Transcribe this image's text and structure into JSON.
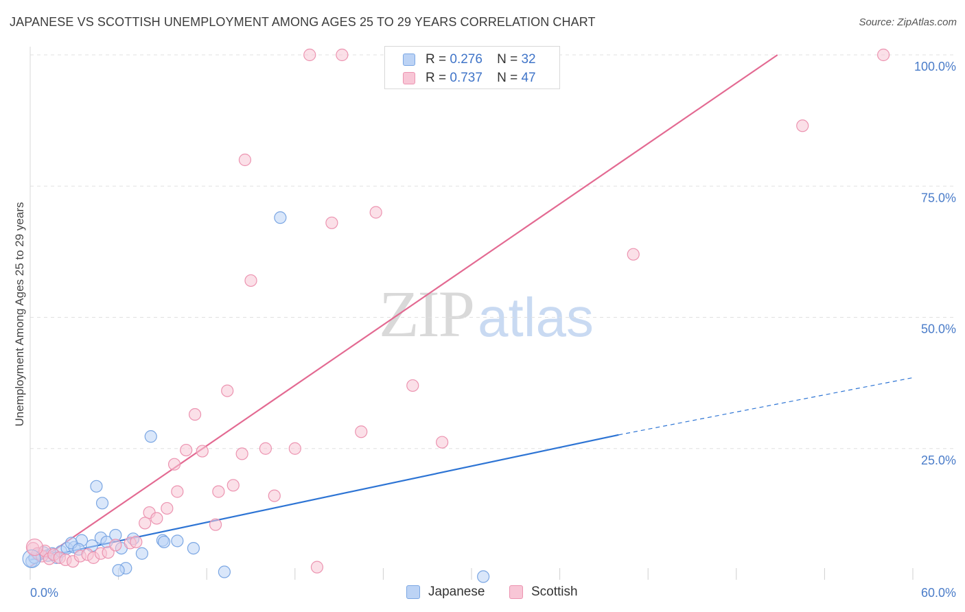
{
  "header": {
    "title": "JAPANESE VS SCOTTISH UNEMPLOYMENT AMONG AGES 25 TO 29 YEARS CORRELATION CHART",
    "source": "Source: ZipAtlas.com"
  },
  "watermark": {
    "part1": "ZIP",
    "part2": "atlas"
  },
  "legend": {
    "rows": [
      {
        "r_label": "R =",
        "r_value": "0.276",
        "n_label": "N =",
        "n_value": "32"
      },
      {
        "r_label": "R =",
        "r_value": "0.737",
        "n_label": "N =",
        "n_value": "47"
      }
    ]
  },
  "bottom_legend": {
    "japanese": "Japanese",
    "scottish": "Scottish"
  },
  "colors": {
    "japanese_fill": "#bcd3f5",
    "japanese_stroke": "#7aa6e3",
    "japanese_line": "#2d74d4",
    "scottish_fill": "#f8c6d6",
    "scottish_stroke": "#ec93b0",
    "scottish_line": "#e36a92",
    "grid": "#e0e0e0",
    "axis_text": "#4a7cc9"
  },
  "chart_data": {
    "type": "scatter",
    "title": "JAPANESE VS SCOTTISH UNEMPLOYMENT AMONG AGES 25 TO 29 YEARS CORRELATION CHART",
    "xlabel": "",
    "ylabel": "Unemployment Among Ages 25 to 29 years",
    "xlim": [
      0,
      60
    ],
    "ylim": [
      0,
      100
    ],
    "x_tick_labels": [
      "0.0%",
      "60.0%"
    ],
    "y_ticks": [
      {
        "value": 25,
        "label": "25.0%"
      },
      {
        "value": 50,
        "label": "50.0%"
      },
      {
        "value": 75,
        "label": "75.0%"
      },
      {
        "value": 100,
        "label": "100.0%"
      }
    ],
    "grid": true,
    "series": [
      {
        "name": "Japanese",
        "r": 0.276,
        "n": 32,
        "points": [
          [
            0.1,
            3.5
          ],
          [
            0.3,
            4.2
          ],
          [
            0.6,
            4.8
          ],
          [
            0.9,
            5.2
          ],
          [
            1.2,
            4.6
          ],
          [
            1.5,
            5.0
          ],
          [
            1.8,
            4.2
          ],
          [
            2.1,
            5.4
          ],
          [
            2.5,
            6.0
          ],
          [
            3.0,
            6.2
          ],
          [
            3.5,
            7.5
          ],
          [
            4.2,
            6.5
          ],
          [
            4.8,
            8.0
          ],
          [
            5.2,
            7.2
          ],
          [
            2.8,
            7.0
          ],
          [
            3.3,
            5.8
          ],
          [
            4.5,
            17.8
          ],
          [
            4.9,
            14.6
          ],
          [
            5.8,
            8.5
          ],
          [
            6.2,
            6.0
          ],
          [
            7.0,
            7.8
          ],
          [
            7.6,
            5.0
          ],
          [
            8.2,
            27.3
          ],
          [
            9.0,
            7.5
          ],
          [
            9.1,
            7.2
          ],
          [
            10.0,
            7.4
          ],
          [
            11.1,
            6.0
          ],
          [
            13.2,
            1.5
          ],
          [
            17.0,
            69.0
          ],
          [
            6.5,
            2.2
          ],
          [
            6.0,
            1.8
          ],
          [
            30.8,
            0.6
          ]
        ],
        "trend": {
          "x0": 0,
          "y0": 3.8,
          "x1": 40.0,
          "y1": 27.6,
          "dashed_to_x": 60,
          "dashed_to_y": 38.5
        }
      },
      {
        "name": "Scottish",
        "r": 0.737,
        "n": 47,
        "points": [
          [
            0.2,
            6.0
          ],
          [
            0.5,
            5.0
          ],
          [
            0.8,
            4.5
          ],
          [
            1.0,
            5.5
          ],
          [
            1.3,
            4.0
          ],
          [
            1.6,
            4.8
          ],
          [
            2.0,
            4.2
          ],
          [
            2.4,
            3.8
          ],
          [
            2.9,
            3.5
          ],
          [
            3.4,
            4.5
          ],
          [
            3.9,
            4.8
          ],
          [
            4.3,
            4.2
          ],
          [
            4.8,
            5.0
          ],
          [
            5.3,
            5.2
          ],
          [
            5.8,
            6.6
          ],
          [
            6.8,
            7.0
          ],
          [
            7.2,
            7.2
          ],
          [
            7.8,
            10.8
          ],
          [
            8.1,
            12.8
          ],
          [
            8.6,
            11.7
          ],
          [
            9.3,
            13.6
          ],
          [
            9.8,
            22.0
          ],
          [
            10.0,
            16.8
          ],
          [
            10.6,
            24.7
          ],
          [
            11.2,
            31.5
          ],
          [
            11.7,
            24.5
          ],
          [
            12.6,
            10.5
          ],
          [
            12.8,
            16.8
          ],
          [
            13.4,
            36.0
          ],
          [
            13.8,
            18.0
          ],
          [
            14.4,
            24.0
          ],
          [
            14.6,
            80.0
          ],
          [
            15.0,
            57.0
          ],
          [
            16.0,
            25.0
          ],
          [
            16.6,
            16.0
          ],
          [
            18.0,
            25.0
          ],
          [
            19.0,
            100.0
          ],
          [
            19.5,
            2.4
          ],
          [
            20.5,
            68.0
          ],
          [
            21.2,
            100.0
          ],
          [
            22.5,
            28.2
          ],
          [
            23.5,
            70.0
          ],
          [
            26.0,
            37.0
          ],
          [
            28.0,
            26.2
          ],
          [
            41.0,
            62.0
          ],
          [
            52.5,
            86.5
          ],
          [
            58.0,
            100.0
          ]
        ],
        "trend": {
          "x0": 0,
          "y0": 2.5,
          "x1": 50.8,
          "y1": 100.0
        }
      }
    ]
  }
}
